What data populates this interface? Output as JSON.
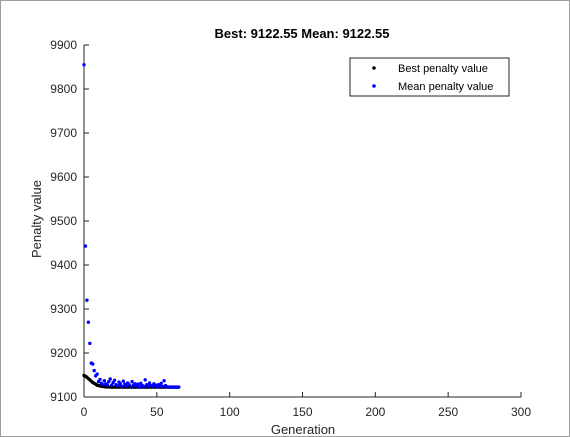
{
  "chart_data": {
    "type": "scatter",
    "title": "Best: 9122.55 Mean: 9122.55",
    "xlabel": "Generation",
    "ylabel": "Penalty value",
    "xlim": [
      0,
      300
    ],
    "ylim": [
      9100,
      9900
    ],
    "xticks": [
      0,
      50,
      100,
      150,
      200,
      250,
      300
    ],
    "yticks": [
      9100,
      9200,
      9300,
      9400,
      9500,
      9600,
      9700,
      9800,
      9900
    ],
    "grid": false,
    "legend": "top-right",
    "x": [
      0,
      1,
      2,
      3,
      4,
      5,
      6,
      7,
      8,
      9,
      10,
      11,
      12,
      13,
      14,
      15,
      16,
      17,
      18,
      19,
      20,
      21,
      22,
      23,
      24,
      25,
      26,
      27,
      28,
      29,
      30,
      31,
      32,
      33,
      34,
      35,
      36,
      37,
      38,
      39,
      40,
      41,
      42,
      43,
      44,
      45,
      46,
      47,
      48,
      49,
      50,
      51,
      52,
      53,
      54,
      55,
      56,
      57,
      58,
      59,
      60,
      61,
      62,
      63,
      64,
      65
    ],
    "series": [
      {
        "name": "Best penalty value",
        "color": "#000000",
        "values": [
          9149,
          9147,
          9145,
          9142,
          9139,
          9136,
          9133,
          9131,
          9129,
          9127,
          9126,
          9125,
          9124.5,
          9124,
          9123.5,
          9123,
          9123,
          9122.8,
          9122.55,
          9122.55,
          9122.55,
          9122.55,
          9122.55,
          9122.55,
          9122.55,
          9122.55,
          9122.55,
          9122.55,
          9122.55,
          9122.55,
          9122.55,
          9122.55,
          9122.55,
          9122.55,
          9122.55,
          9122.55,
          9122.55,
          9122.55,
          9122.55,
          9122.55,
          9122.55,
          9122.55,
          9122.55,
          9122.55,
          9122.55,
          9122.55,
          9122.55,
          9122.55,
          9122.55,
          9122.55,
          9122.55,
          9122.55,
          9122.55,
          9122.55,
          9122.55,
          9122.55,
          9122.55,
          9122.55,
          9122.55,
          9122.55,
          9122.55,
          9122.55,
          9122.55,
          9122.55,
          9122.55,
          9122.55
        ]
      },
      {
        "name": "Mean penalty value",
        "color": "#0000ff",
        "values": [
          9855,
          9443,
          9320,
          9270,
          9222,
          9177,
          9175,
          9160,
          9148,
          9152,
          9135,
          9140,
          9131,
          9128,
          9137,
          9130,
          9128,
          9135,
          9141,
          9127,
          9133,
          9138,
          9128,
          9126,
          9134,
          9130,
          9124,
          9136,
          9129,
          9125,
          9132,
          9128,
          9124,
          9135,
          9127,
          9130,
          9125,
          9129,
          9123,
          9131,
          9126,
          9124,
          9139,
          9128,
          9125,
          9132,
          9126,
          9124,
          9130,
          9127,
          9123,
          9128,
          9125,
          9131,
          9124,
          9137,
          9126,
          9123,
          9122.55,
          9122.55,
          9122.55,
          9122.55,
          9122.55,
          9122.55,
          9122.55,
          9122.55
        ]
      }
    ]
  }
}
